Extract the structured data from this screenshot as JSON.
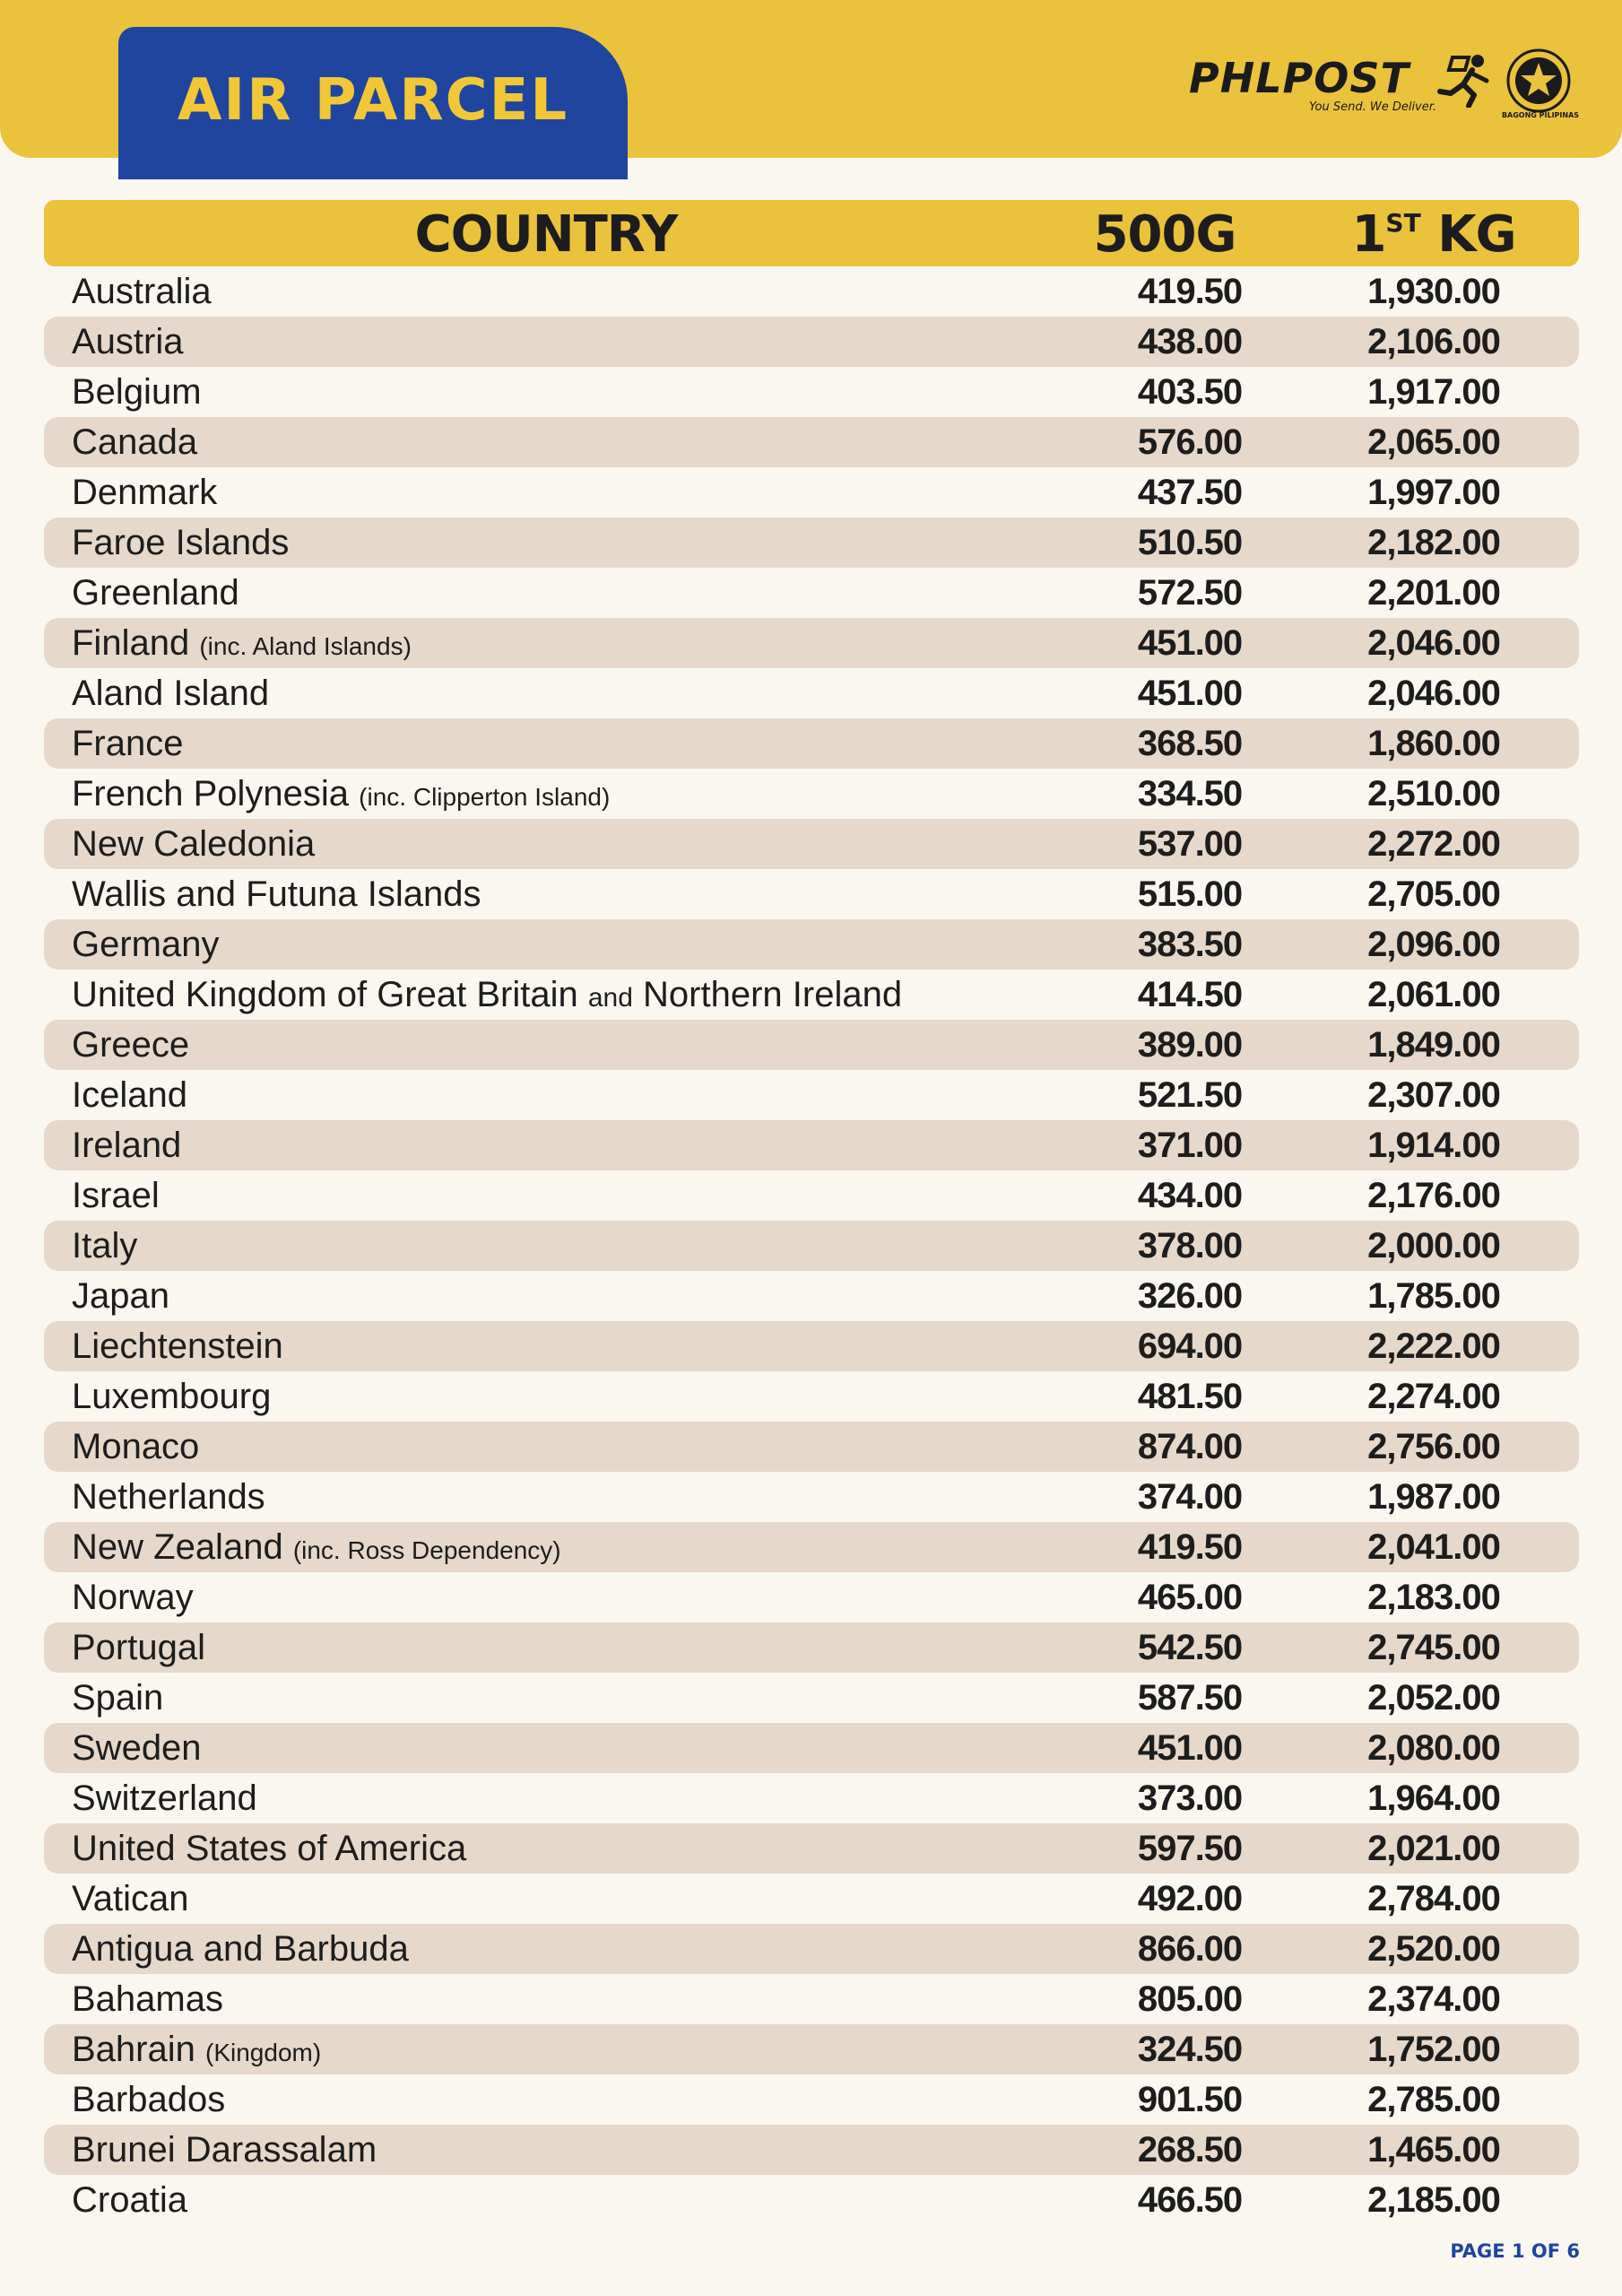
{
  "header": {
    "title": "AIR PARCEL",
    "brand_name": "PHLPOST",
    "brand_tagline": "You Send. We Deliver.",
    "seal_label": "BAGONG PILIPINAS",
    "icons": [
      "runner-icon",
      "seal-icon"
    ]
  },
  "colors": {
    "band": "#eac23b",
    "title_tab": "#1f459e",
    "title_text": "#f2c737",
    "row_shade": "#e6d8cb",
    "page_indicator": "#1f459e"
  },
  "table": {
    "columns": {
      "country": "COUNTRY",
      "col_500g": "500G",
      "kg_number": "1",
      "kg_suffix": "ST",
      "kg_unit": "KG"
    },
    "rows": [
      {
        "country": "Australia",
        "g500": "419.50",
        "kg": "1,930.00"
      },
      {
        "country": "Austria",
        "g500": "438.00",
        "kg": "2,106.00"
      },
      {
        "country": "Belgium",
        "g500": "403.50",
        "kg": "1,917.00"
      },
      {
        "country": "Canada",
        "g500": "576.00",
        "kg": "2,065.00"
      },
      {
        "country": "Denmark",
        "g500": "437.50",
        "kg": "1,997.00"
      },
      {
        "country": "Faroe Islands",
        "g500": "510.50",
        "kg": "2,182.00"
      },
      {
        "country": "Greenland",
        "g500": "572.50",
        "kg": "2,201.00"
      },
      {
        "country": "Finland",
        "note": "(inc. Aland Islands)",
        "g500": "451.00",
        "kg": "2,046.00"
      },
      {
        "country": "Aland Island",
        "g500": "451.00",
        "kg": "2,046.00"
      },
      {
        "country": "France",
        "g500": "368.50",
        "kg": "1,860.00"
      },
      {
        "country": "French Polynesia",
        "note": "(inc. Clipperton Island)",
        "g500": "334.50",
        "kg": "2,510.00"
      },
      {
        "country": "New Caledonia",
        "g500": "537.00",
        "kg": "2,272.00"
      },
      {
        "country": "Wallis and Futuna Islands",
        "g500": "515.00",
        "kg": "2,705.00"
      },
      {
        "country": "Germany",
        "g500": "383.50",
        "kg": "2,096.00"
      },
      {
        "country": "United Kingdom of Great Britain",
        "small": "and",
        "country_tail": "Northern Ireland",
        "g500": "414.50",
        "kg": "2,061.00"
      },
      {
        "country": "Greece",
        "g500": "389.00",
        "kg": "1,849.00"
      },
      {
        "country": "Iceland",
        "g500": "521.50",
        "kg": "2,307.00"
      },
      {
        "country": "Ireland",
        "g500": "371.00",
        "kg": "1,914.00"
      },
      {
        "country": "Israel",
        "g500": "434.00",
        "kg": "2,176.00"
      },
      {
        "country": "Italy",
        "g500": "378.00",
        "kg": "2,000.00"
      },
      {
        "country": "Japan",
        "g500": "326.00",
        "kg": "1,785.00"
      },
      {
        "country": "Liechtenstein",
        "g500": "694.00",
        "kg": "2,222.00"
      },
      {
        "country": "Luxembourg",
        "g500": "481.50",
        "kg": "2,274.00"
      },
      {
        "country": "Monaco",
        "g500": "874.00",
        "kg": "2,756.00"
      },
      {
        "country": "Netherlands",
        "g500": "374.00",
        "kg": "1,987.00"
      },
      {
        "country": "New Zealand",
        "note": "(inc. Ross Dependency)",
        "g500": "419.50",
        "kg": "2,041.00"
      },
      {
        "country": "Norway",
        "g500": "465.00",
        "kg": "2,183.00"
      },
      {
        "country": "Portugal",
        "g500": "542.50",
        "kg": "2,745.00"
      },
      {
        "country": "Spain",
        "g500": "587.50",
        "kg": "2,052.00"
      },
      {
        "country": "Sweden",
        "g500": "451.00",
        "kg": "2,080.00"
      },
      {
        "country": "Switzerland",
        "g500": "373.00",
        "kg": "1,964.00"
      },
      {
        "country": "United States of America",
        "g500": "597.50",
        "kg": "2,021.00"
      },
      {
        "country": "Vatican",
        "g500": "492.00",
        "kg": "2,784.00"
      },
      {
        "country": "Antigua and Barbuda",
        "g500": "866.00",
        "kg": "2,520.00"
      },
      {
        "country": "Bahamas",
        "g500": "805.00",
        "kg": "2,374.00"
      },
      {
        "country": "Bahrain",
        "note": "(Kingdom)",
        "g500": "324.50",
        "kg": "1,752.00"
      },
      {
        "country": "Barbados",
        "g500": "901.50",
        "kg": "2,785.00"
      },
      {
        "country": "Brunei Darassalam",
        "g500": "268.50",
        "kg": "1,465.00"
      },
      {
        "country": "Croatia",
        "g500": "466.50",
        "kg": "2,185.00"
      }
    ]
  },
  "footer": {
    "page_indicator": "PAGE 1 OF 6"
  }
}
